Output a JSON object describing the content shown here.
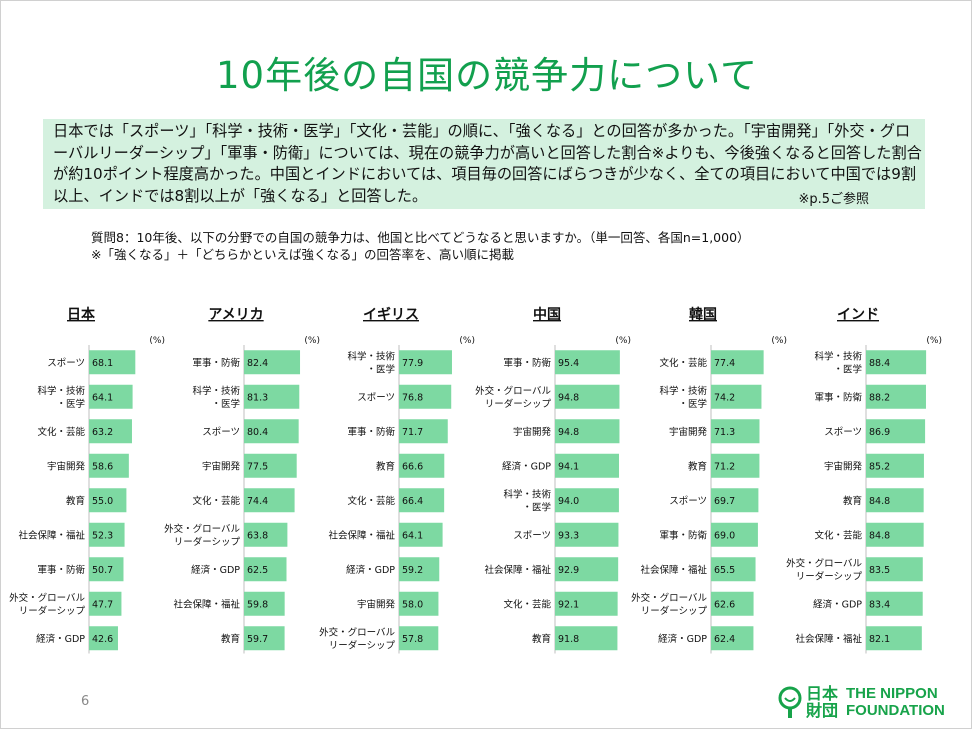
{
  "title": "10年後の自国の競争力について",
  "summary": {
    "text": "日本では「スポーツ」「科学・技術・医学」「文化・芸能」の順に、「強くなる」との回答が多かった。「宇宙開発」「外交・グローバルリーダーシップ」「軍事・防衛」については、現在の競争力が高いと回答した割合※よりも、今後強くなると回答した割合が約10ポイント程度高かった。中国とインドにおいては、項目毎の回答にばらつきが少なく、全ての項目において中国では9割以上、インドでは8割以上が「強くなる」と回答した。",
    "ref": "※p.5ご参照"
  },
  "question": {
    "line1": "質問8：10年後、以下の分野での自国の競争力は、他国と比べてどうなると思いますか。（単一回答、各国n=1,000）",
    "line2": "※「強くなる」＋「どちらかといえば強くなる」の回答率を、高い順に掲載"
  },
  "chart_data": [
    {
      "type": "bar",
      "orientation": "horizontal",
      "title": "日本",
      "unit": "(%)",
      "xlim": [
        0,
        100
      ],
      "categories": [
        "スポーツ",
        "科学・技術・医学",
        "文化・芸能",
        "宇宙開発",
        "教育",
        "社会保障・福祉",
        "軍事・防衛",
        "外交・グローバルリーダーシップ",
        "経済・GDP"
      ],
      "labels": [
        [
          "スポーツ"
        ],
        [
          "科学・技術",
          "・医学"
        ],
        [
          "文化・芸能"
        ],
        [
          "宇宙開発"
        ],
        [
          "教育"
        ],
        [
          "社会保障・福祉"
        ],
        [
          "軍事・防衛"
        ],
        [
          "外交・グローバル",
          "リーダーシップ"
        ],
        [
          "経済・GDP"
        ]
      ],
      "values": [
        68.1,
        64.1,
        63.2,
        58.6,
        55.0,
        52.3,
        50.7,
        47.7,
        42.6
      ]
    },
    {
      "type": "bar",
      "orientation": "horizontal",
      "title": "アメリカ",
      "unit": "(%)",
      "xlim": [
        0,
        100
      ],
      "categories": [
        "軍事・防衛",
        "科学・技術・医学",
        "スポーツ",
        "宇宙開発",
        "文化・芸能",
        "外交・グローバルリーダーシップ",
        "経済・GDP",
        "社会保障・福祉",
        "教育"
      ],
      "labels": [
        [
          "軍事・防衛"
        ],
        [
          "科学・技術",
          "・医学"
        ],
        [
          "スポーツ"
        ],
        [
          "宇宙開発"
        ],
        [
          "文化・芸能"
        ],
        [
          "外交・グローバル",
          "リーダーシップ"
        ],
        [
          "経済・GDP"
        ],
        [
          "社会保障・福祉"
        ],
        [
          "教育"
        ]
      ],
      "values": [
        82.4,
        81.3,
        80.4,
        77.5,
        74.4,
        63.8,
        62.5,
        59.8,
        59.7
      ]
    },
    {
      "type": "bar",
      "orientation": "horizontal",
      "title": "イギリス",
      "unit": "(%)",
      "xlim": [
        0,
        100
      ],
      "categories": [
        "科学・技術・医学",
        "スポーツ",
        "軍事・防衛",
        "教育",
        "文化・芸能",
        "社会保障・福祉",
        "経済・GDP",
        "宇宙開発",
        "外交・グローバルリーダーシップ"
      ],
      "labels": [
        [
          "科学・技術",
          "・医学"
        ],
        [
          "スポーツ"
        ],
        [
          "軍事・防衛"
        ],
        [
          "教育"
        ],
        [
          "文化・芸能"
        ],
        [
          "社会保障・福祉"
        ],
        [
          "経済・GDP"
        ],
        [
          "宇宙開発"
        ],
        [
          "外交・グローバル",
          "リーダーシップ"
        ]
      ],
      "values": [
        77.9,
        76.8,
        71.7,
        66.6,
        66.4,
        64.1,
        59.2,
        58.0,
        57.8
      ]
    },
    {
      "type": "bar",
      "orientation": "horizontal",
      "title": "中国",
      "unit": "(%)",
      "xlim": [
        0,
        100
      ],
      "categories": [
        "軍事・防衛",
        "外交・グローバルリーダーシップ",
        "宇宙開発",
        "経済・GDP",
        "科学・技術・医学",
        "スポーツ",
        "社会保障・福祉",
        "文化・芸能",
        "教育"
      ],
      "labels": [
        [
          "軍事・防衛"
        ],
        [
          "外交・グローバル",
          "リーダーシップ"
        ],
        [
          "宇宙開発"
        ],
        [
          "経済・GDP"
        ],
        [
          "科学・技術",
          "・医学"
        ],
        [
          "スポーツ"
        ],
        [
          "社会保障・福祉"
        ],
        [
          "文化・芸能"
        ],
        [
          "教育"
        ]
      ],
      "values": [
        95.4,
        94.8,
        94.8,
        94.1,
        94.0,
        93.3,
        92.9,
        92.1,
        91.8
      ]
    },
    {
      "type": "bar",
      "orientation": "horizontal",
      "title": "韓国",
      "unit": "(%)",
      "xlim": [
        0,
        100
      ],
      "categories": [
        "文化・芸能",
        "科学・技術・医学",
        "宇宙開発",
        "教育",
        "スポーツ",
        "軍事・防衛",
        "社会保障・福祉",
        "外交・グローバルリーダーシップ",
        "経済・GDP"
      ],
      "labels": [
        [
          "文化・芸能"
        ],
        [
          "科学・技術",
          "・医学"
        ],
        [
          "宇宙開発"
        ],
        [
          "教育"
        ],
        [
          "スポーツ"
        ],
        [
          "軍事・防衛"
        ],
        [
          "社会保障・福祉"
        ],
        [
          "外交・グローバル",
          "リーダーシップ"
        ],
        [
          "経済・GDP"
        ]
      ],
      "values": [
        77.4,
        74.2,
        71.3,
        71.2,
        69.7,
        69.0,
        65.5,
        62.6,
        62.4
      ]
    },
    {
      "type": "bar",
      "orientation": "horizontal",
      "title": "インド",
      "unit": "(%)",
      "xlim": [
        0,
        100
      ],
      "categories": [
        "科学・技術・医学",
        "軍事・防衛",
        "スポーツ",
        "宇宙開発",
        "教育",
        "文化・芸能",
        "外交・グローバルリーダーシップ",
        "経済・GDP",
        "社会保障・福祉"
      ],
      "labels": [
        [
          "科学・技術",
          "・医学"
        ],
        [
          "軍事・防衛"
        ],
        [
          "スポーツ"
        ],
        [
          "宇宙開発"
        ],
        [
          "教育"
        ],
        [
          "文化・芸能"
        ],
        [
          "外交・グローバル",
          "リーダーシップ"
        ],
        [
          "経済・GDP"
        ],
        [
          "社会保障・福祉"
        ]
      ],
      "values": [
        88.4,
        88.2,
        86.9,
        85.2,
        84.8,
        84.8,
        83.5,
        83.4,
        82.1
      ]
    }
  ],
  "footer": {
    "page_number": "6",
    "logo_jp_line1": "日本",
    "logo_jp_line2": "財団",
    "logo_en_line1": "THE NIPPON",
    "logo_en_line2": "FOUNDATION",
    "accent_color": "#12a04e",
    "bar_color": "#7dd9a2",
    "summary_bg": "#d4f1df"
  }
}
